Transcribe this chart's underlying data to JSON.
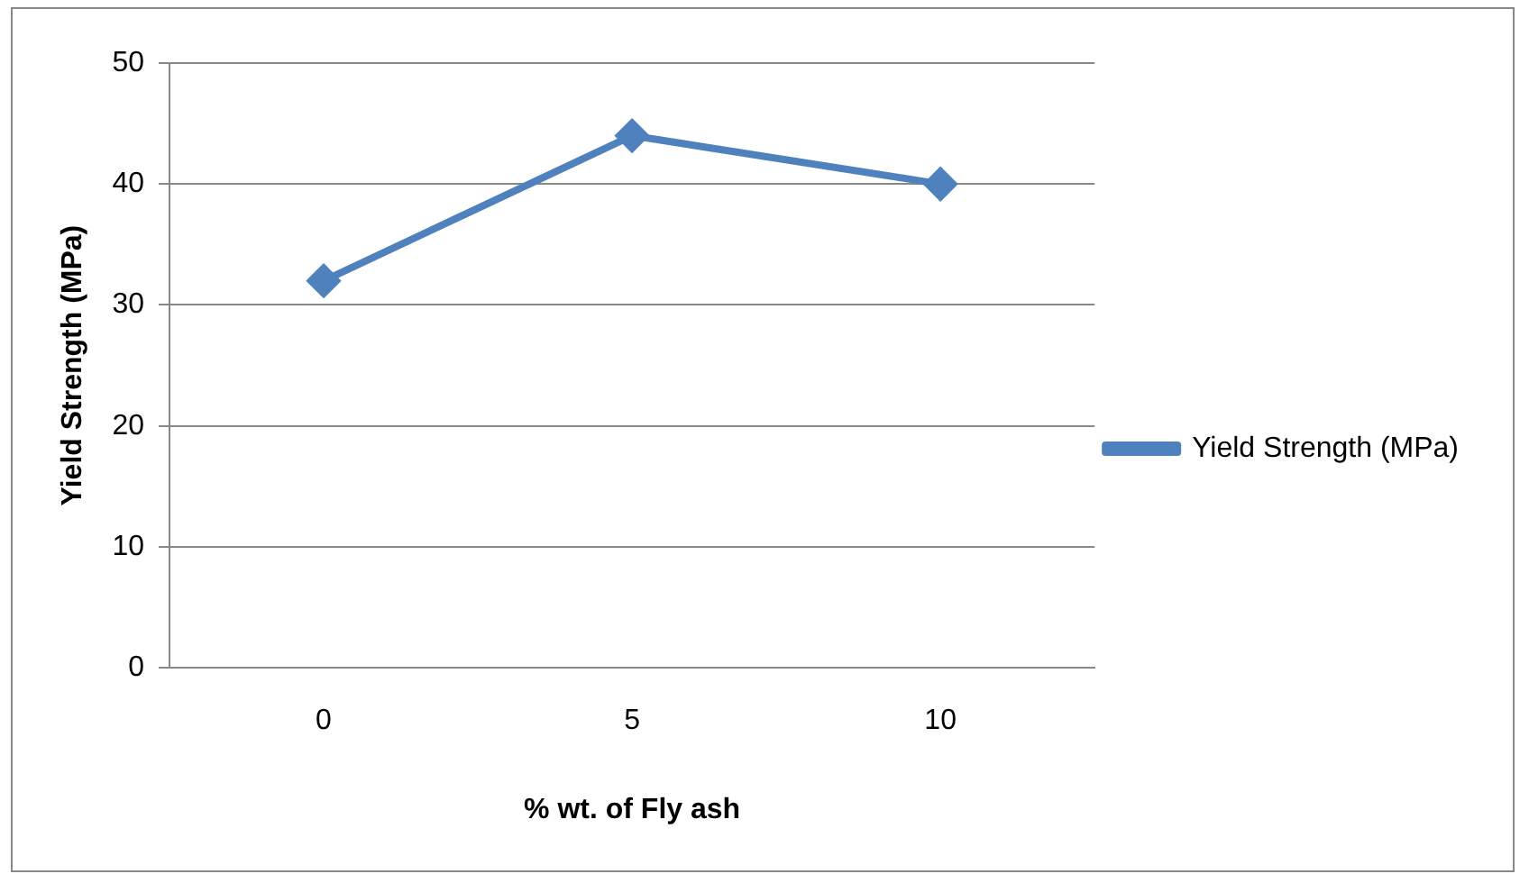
{
  "chart_data": {
    "type": "line",
    "xlabel": "% wt. of Fly ash",
    "ylabel": "Yield Strength (MPa)",
    "categories": [
      "0",
      "5",
      "10"
    ],
    "series": [
      {
        "name": "Yield Strength (MPa)",
        "color": "#4f81bd",
        "values": [
          32,
          44,
          40
        ]
      }
    ],
    "ylim": [
      0,
      50
    ],
    "yticks": [
      0,
      10,
      20,
      30,
      40,
      50
    ],
    "grid": "y",
    "legend": "right",
    "marker": "diamond",
    "line_style": "solid"
  }
}
